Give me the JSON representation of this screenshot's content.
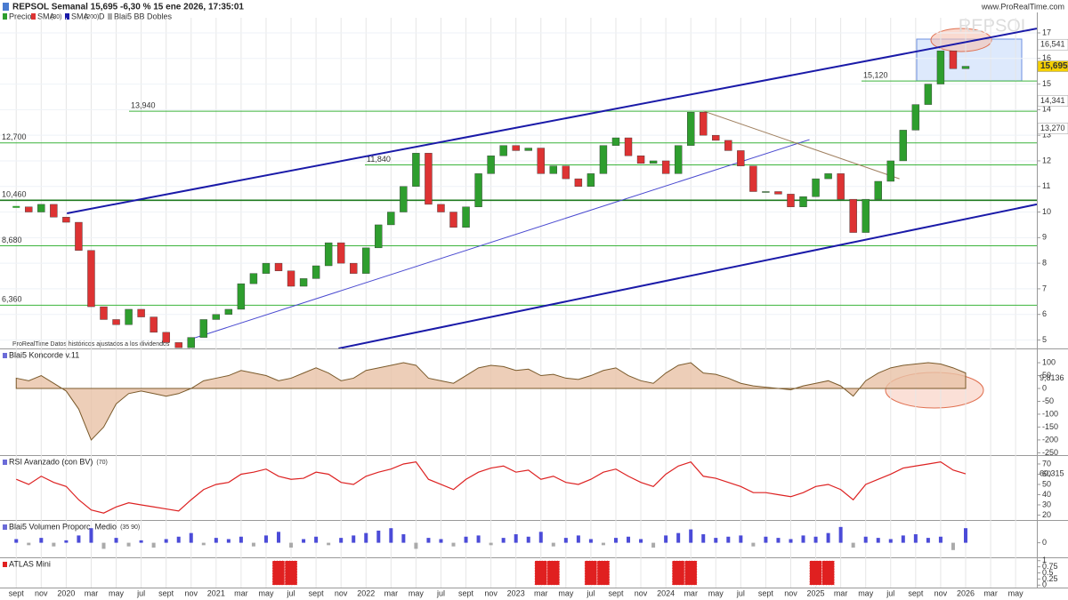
{
  "header": {
    "title": "REPSOL Semanal 15,695 -6,30 % 15 ene 2026, 17:35:01",
    "site": "www.ProRealTime.com",
    "watermark": "REPSOL",
    "legend": [
      "Precio",
      "SMA",
      "(30)",
      "SMA",
      "(200)",
      "D",
      "Blai5 BB Dobles"
    ],
    "note": "ProRealTime Datos históricos ajustados a los dividendos"
  },
  "chart_data": [
    {
      "type": "candlestick",
      "series": [
        {
          "name": "Precio",
          "values": [
            10.2,
            10.0,
            10.3,
            9.8,
            9.6,
            8.5,
            6.3,
            5.8,
            5.6,
            6.2,
            5.9,
            5.3,
            4.9,
            4.7,
            5.1,
            5.8,
            6.0,
            6.2,
            7.2,
            7.6,
            8.0,
            7.7,
            7.1,
            7.4,
            7.9,
            8.8,
            8.0,
            7.6,
            8.6,
            9.5,
            10.0,
            11.0,
            12.3,
            10.3,
            10.0,
            9.4,
            10.2,
            11.5,
            12.2,
            12.6,
            12.4,
            12.5,
            11.5,
            11.8,
            11.3,
            11.0,
            11.5,
            12.6,
            12.9,
            12.2,
            11.9,
            12.0,
            11.5,
            12.6,
            13.9,
            13.0,
            12.8,
            12.4,
            11.8,
            10.8,
            10.8,
            10.7,
            10.2,
            10.6,
            11.3,
            11.5,
            10.5,
            9.2,
            10.5,
            11.2,
            12.0,
            13.2,
            14.2,
            15.0,
            16.3,
            15.6,
            15.695
          ]
        }
      ],
      "xlim": [
        -1.3,
        81.7
      ],
      "ylim": [
        4.67,
        17.59
      ],
      "yticks": [
        5,
        6,
        7,
        8,
        9,
        10,
        11,
        12,
        13,
        14,
        15,
        16,
        17
      ],
      "levels": [
        {
          "value": 13.94,
          "label": "13,940"
        },
        {
          "value": 12.7,
          "label": "12,700"
        },
        {
          "value": 11.84,
          "label": "11,840"
        },
        {
          "value": 10.46,
          "label": "10,460"
        },
        {
          "value": 8.68,
          "label": "8,680"
        },
        {
          "value": 6.36,
          "label": "6,360"
        },
        {
          "value": 15.12,
          "label": "15,120"
        }
      ],
      "trend_lines": [
        {
          "color": "#1a1aa8",
          "points": [
            [
              4.06,
              9.95
            ],
            [
              81.7,
              17.17
            ]
          ]
        },
        {
          "color": "#1a1aa8",
          "points": [
            [
              25.8,
              4.67
            ],
            [
              81.7,
              10.3
            ]
          ]
        },
        {
          "color": "#4a4ad0",
          "points": [
            [
              13.7,
              4.99
            ],
            [
              63.5,
              12.83
            ]
          ]
        },
        {
          "color": "#a08060",
          "points": [
            [
              54.98,
              13.95
            ],
            [
              70.7,
              11.3
            ]
          ]
        }
      ],
      "right_labels": [
        {
          "value": 16.541,
          "label": "16,541",
          "color": "#ffffff"
        },
        {
          "value": 15.695,
          "label": "15,695",
          "color": "#f5d000"
        },
        {
          "value": 14.341,
          "label": "14,341",
          "color": "#ffffff"
        },
        {
          "value": 13.27,
          "label": "13,270",
          "color": "#ffffff"
        }
      ]
    },
    {
      "type": "area",
      "title": "Blai5 Koncorde v.11",
      "values": [
        40,
        30,
        50,
        20,
        -10,
        -80,
        -200,
        -150,
        -60,
        -20,
        -10,
        -20,
        -30,
        -20,
        0,
        30,
        40,
        50,
        70,
        60,
        50,
        30,
        40,
        60,
        80,
        60,
        30,
        40,
        70,
        80,
        90,
        100,
        90,
        40,
        30,
        20,
        50,
        80,
        90,
        85,
        70,
        75,
        50,
        55,
        40,
        35,
        50,
        70,
        80,
        50,
        30,
        20,
        60,
        90,
        100,
        60,
        55,
        40,
        20,
        10,
        5,
        0,
        -5,
        10,
        20,
        30,
        10,
        -30,
        30,
        60,
        80,
        90,
        95,
        100,
        95,
        80,
        60
      ],
      "last_label": "9,8136",
      "xlim": [
        -1.3,
        81.7
      ],
      "ylim": [
        -259,
        152
      ],
      "yticks": [
        100,
        50,
        0,
        -50,
        -100,
        -150,
        -200,
        -250
      ]
    },
    {
      "type": "line",
      "title": "RSI Avanzado (con BV)",
      "param": "(70)",
      "values": [
        55,
        50,
        58,
        52,
        48,
        35,
        25,
        22,
        28,
        32,
        30,
        28,
        26,
        24,
        35,
        45,
        50,
        52,
        60,
        62,
        65,
        58,
        55,
        56,
        62,
        60,
        52,
        50,
        58,
        62,
        65,
        70,
        72,
        55,
        50,
        45,
        55,
        62,
        66,
        68,
        62,
        64,
        55,
        58,
        52,
        50,
        55,
        62,
        65,
        58,
        52,
        48,
        60,
        68,
        72,
        58,
        56,
        52,
        48,
        42,
        42,
        40,
        38,
        42,
        48,
        50,
        45,
        35,
        50,
        55,
        60,
        66,
        68,
        70,
        72,
        64,
        60.315
      ],
      "last_label": "60,315",
      "xlim": [
        -1.3,
        81.7
      ],
      "ylim": [
        15.2,
        77.8
      ],
      "yticks": [
        70,
        60,
        50,
        40,
        30,
        20
      ]
    },
    {
      "type": "bar",
      "title": "Blai5 Volumen Proporc. Medio",
      "param": "(35 90)",
      "values": [
        0.3,
        -0.2,
        0.4,
        -0.3,
        0.2,
        0.6,
        1.2,
        -0.5,
        0.4,
        -0.3,
        0.2,
        -0.4,
        0.3,
        0.5,
        0.8,
        -0.2,
        0.4,
        0.3,
        0.5,
        -0.3,
        0.6,
        0.9,
        -0.4,
        0.3,
        0.5,
        -0.2,
        0.4,
        0.6,
        0.8,
        1.0,
        1.2,
        0.7,
        -0.5,
        0.4,
        0.3,
        -0.3,
        0.5,
        0.6,
        -0.2,
        0.4,
        0.7,
        0.5,
        0.9,
        -0.3,
        0.4,
        0.6,
        0.3,
        -0.2,
        0.4,
        0.5,
        0.3,
        -0.4,
        0.6,
        0.8,
        1.1,
        0.7,
        0.4,
        0.5,
        0.6,
        -0.3,
        0.5,
        0.4,
        0.3,
        0.6,
        0.5,
        0.8,
        1.3,
        -0.4,
        0.5,
        0.4,
        0.3,
        0.6,
        0.7,
        0.4,
        0.5,
        -0.6,
        1.2
      ],
      "xlim": [
        -1.3,
        81.7
      ],
      "ylim": [
        -1.2,
        1.8
      ],
      "yticks": [
        0
      ]
    },
    {
      "type": "signal",
      "title": "ATLAS Mini",
      "values": [
        0,
        0,
        0,
        0,
        0,
        0,
        0,
        0,
        0,
        0,
        0,
        0,
        0,
        0,
        0,
        0,
        0,
        0,
        0,
        0,
        0,
        1,
        1,
        0,
        0,
        0,
        0,
        0,
        0,
        0,
        0,
        0,
        0,
        0,
        0,
        0,
        0,
        0,
        0,
        0,
        0,
        0,
        1,
        1,
        0,
        0,
        1,
        1,
        0,
        0,
        0,
        0,
        0,
        1,
        1,
        0,
        0,
        0,
        0,
        0,
        0,
        0,
        0,
        0,
        1,
        1,
        0,
        0,
        0,
        0,
        0,
        0,
        0,
        0,
        0,
        0,
        0
      ],
      "xlim": [
        -1.3,
        81.7
      ],
      "ylim": [
        -0.1,
        1.1
      ],
      "yticks": [
        1,
        0.75,
        0.5,
        0.25,
        0
      ],
      "xticks": [
        {
          "value": 0,
          "label": "sept"
        },
        {
          "value": 2,
          "label": "nov"
        },
        {
          "value": 4,
          "label": "2020"
        },
        {
          "value": 6,
          "label": "mar"
        },
        {
          "value": 8,
          "label": "may"
        },
        {
          "value": 10,
          "label": "jul"
        },
        {
          "value": 12,
          "label": "sept"
        },
        {
          "value": 14,
          "label": "nov"
        },
        {
          "value": 16,
          "label": "2021"
        },
        {
          "value": 18,
          "label": "mar"
        },
        {
          "value": 20,
          "label": "may"
        },
        {
          "value": 22,
          "label": "jul"
        },
        {
          "value": 24,
          "label": "sept"
        },
        {
          "value": 26,
          "label": "nov"
        },
        {
          "value": 28,
          "label": "2022"
        },
        {
          "value": 30,
          "label": "mar"
        },
        {
          "value": 32,
          "label": "may"
        },
        {
          "value": 34,
          "label": "jul"
        },
        {
          "value": 36,
          "label": "sept"
        },
        {
          "value": 38,
          "label": "nov"
        },
        {
          "value": 40,
          "label": "2023"
        },
        {
          "value": 42,
          "label": "mar"
        },
        {
          "value": 44,
          "label": "may"
        },
        {
          "value": 46,
          "label": "jul"
        },
        {
          "value": 48,
          "label": "sept"
        },
        {
          "value": 50,
          "label": "nov"
        },
        {
          "value": 52,
          "label": "2024"
        },
        {
          "value": 54,
          "label": "mar"
        },
        {
          "value": 56,
          "label": "may"
        },
        {
          "value": 58,
          "label": "jul"
        },
        {
          "value": 60,
          "label": "sept"
        },
        {
          "value": 62,
          "label": "nov"
        },
        {
          "value": 64,
          "label": "2025"
        },
        {
          "value": 66,
          "label": "mar"
        },
        {
          "value": 68,
          "label": "may"
        },
        {
          "value": 70,
          "label": "jul"
        },
        {
          "value": 72,
          "label": "sept"
        },
        {
          "value": 74,
          "label": "nov"
        },
        {
          "value": 76,
          "label": "2026"
        },
        {
          "value": 78,
          "label": "mar"
        },
        {
          "value": 80,
          "label": "may"
        }
      ]
    }
  ]
}
